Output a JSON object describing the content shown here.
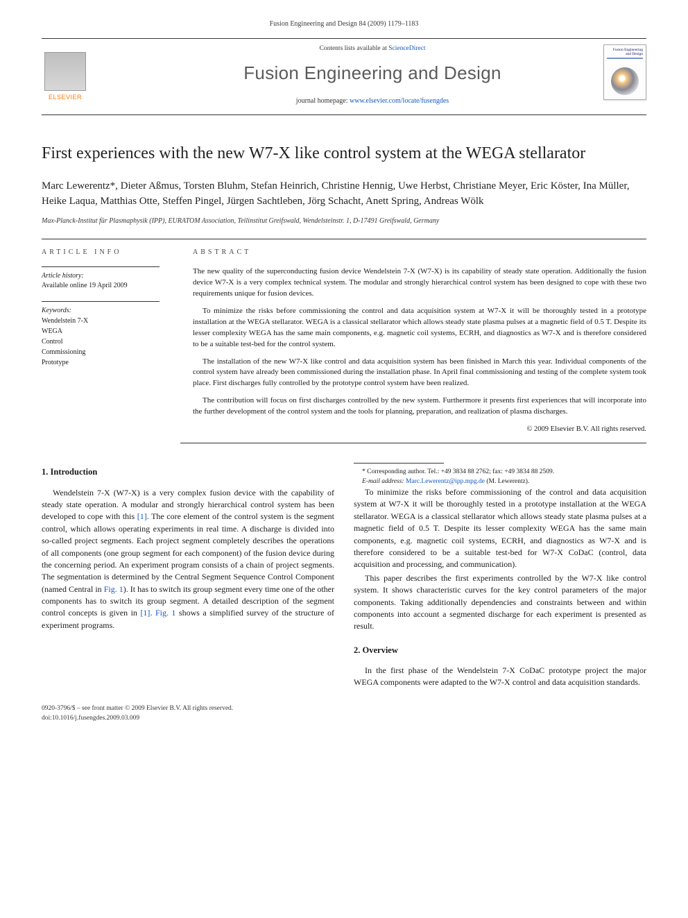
{
  "header": {
    "running_head": "Fusion Engineering and Design 84 (2009) 1179–1183",
    "contents_prefix": "Contents lists available at ",
    "contents_link": "ScienceDirect",
    "journal_name": "Fusion Engineering and Design",
    "homepage_prefix": "journal homepage: ",
    "homepage_url": "www.elsevier.com/locate/fusengdes",
    "publisher_logo_text": "ELSEVIER",
    "thumb_title": "Fusion Engineering and Design"
  },
  "title": "First experiences with the new W7-X like control system at the WEGA stellarator",
  "authors_line": "Marc Lewerentz*, Dieter Aßmus, Torsten Bluhm, Stefan Heinrich, Christine Hennig, Uwe Herbst, Christiane Meyer, Eric Köster, Ina Müller, Heike Laqua, Matthias Otte, Steffen Pingel, Jürgen Sachtleben, Jörg Schacht, Anett Spring, Andreas Wölk",
  "affiliation": "Max-Planck-Institut für Plasmaphysik (IPP), EURATOM Association, Teilinstitut Greifswald, Wendelsteinstr. 1, D-17491 Greifswald, Germany",
  "article_info": {
    "head": "ARTICLE INFO",
    "history_label": "Article history:",
    "history_value": "Available online 19 April 2009",
    "keywords_label": "Keywords:",
    "keywords": [
      "Wendelstein 7-X",
      "WEGA",
      "Control",
      "Commissioning",
      "Prototype"
    ]
  },
  "abstract": {
    "head": "ABSTRACT",
    "p1": "The new quality of the superconducting fusion device Wendelstein 7-X (W7-X) is its capability of steady state operation. Additionally the fusion device W7-X is a very complex technical system. The modular and strongly hierarchical control system has been designed to cope with these two requirements unique for fusion devices.",
    "p2": "To minimize the risks before commissioning the control and data acquisition system at W7-X it will be thoroughly tested in a prototype installation at the WEGA stellarator. WEGA is a classical stellarator which allows steady state plasma pulses at a magnetic field of 0.5 T. Despite its lesser complexity WEGA has the same main components, e.g. magnetic coil systems, ECRH, and diagnostics as W7-X and is therefore considered to be a suitable test-bed for the control system.",
    "p3": "The installation of the new W7-X like control and data acquisition system has been finished in March this year. Individual components of the control system have already been commissioned during the installation phase. In April final commissioning and testing of the complete system took place. First discharges fully controlled by the prototype control system have been realized.",
    "p4": "The contribution will focus on first discharges controlled by the new system. Furthermore it presents first experiences that will incorporate into the further development of the control system and the tools for planning, preparation, and realization of plasma discharges.",
    "copyright": "© 2009 Elsevier B.V. All rights reserved."
  },
  "sections": {
    "s1_head": "1.  Introduction",
    "s1_p1a": "Wendelstein 7-X (W7-X) is a very complex fusion device with the capability of steady state operation. A modular and strongly hierarchical control system has been developed to cope with this ",
    "s1_ref1": "[1]",
    "s1_p1b": ". The core element of the control system is the segment control, which allows operating experiments in real time. A discharge is divided into so-called project segments. Each project segment completely describes the operations of all components (one group segment for each component) of the fusion device during the concerning period. An experiment program consists of a chain of project segments. The segmentation is determined by the Central Segment Sequence Control Component (named Central in ",
    "s1_fig1a": "Fig. 1",
    "s1_p1c": "). It has to switch its group segment every time one of the other components has to switch its group segment. A detailed description of the segment control concepts is given in ",
    "s1_ref1b": "[1]",
    "s1_p1d": ". ",
    "s1_fig1b": "Fig. 1",
    "s1_p1e": " shows a simplified survey of the structure of experiment programs.",
    "s1_p2": "To minimize the risks before commissioning of the control and data acquisition system at W7-X it will be thoroughly tested in a prototype installation at the WEGA stellarator. WEGA is a classical stellarator which allows steady state plasma pulses at a magnetic field of 0.5 T. Despite its lesser complexity WEGA has the same main components, e.g. magnetic coil systems, ECRH, and diagnostics as W7-X and is therefore considered to be a suitable test-bed for W7-X CoDaC (control, data acquisition and processing, and communication).",
    "s1_p3": "This paper describes the first experiments controlled by the W7-X like control system. It shows characteristic curves for the key control parameters of the major components. Taking additionally dependencies and constraints between and within components into account a segmented discharge for each experiment is presented as result.",
    "s2_head": "2.  Overview",
    "s2_p1": "In the first phase of the Wendelstein 7-X CoDaC prototype project the major WEGA components were adapted to the W7-X control and data acquisition standards."
  },
  "footnotes": {
    "corr": "* Corresponding author. Tel.: +49 3834 88 2762; fax: +49 3834 88 2509.",
    "email_label": "E-mail address: ",
    "email": "Marc.Lewerentz@ipp.mpg.de",
    "email_suffix": " (M. Lewerentz)."
  },
  "bottom": {
    "line1": "0920-3796/$ – see front matter © 2009 Elsevier B.V. All rights reserved.",
    "doi": "doi:10.1016/j.fusengdes.2009.03.009"
  },
  "colors": {
    "link": "#1157c4",
    "elsevier_orange": "#ff7a00",
    "rule": "#333333",
    "text": "#1a1a1a"
  }
}
